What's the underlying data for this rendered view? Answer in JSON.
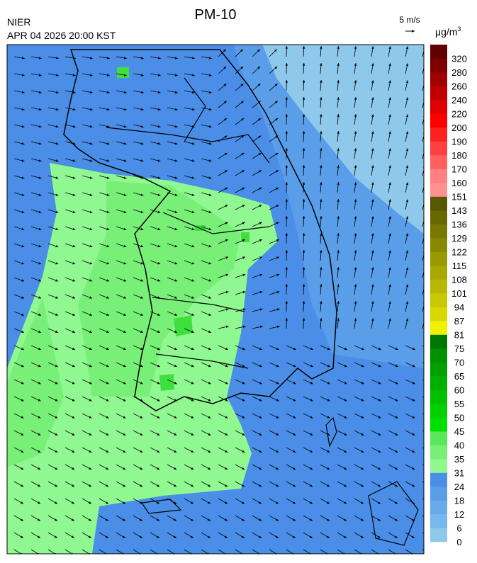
{
  "header": {
    "title": "PM-10",
    "agency": "NIER",
    "timestamp": "APR 04 2026 20:00 KST"
  },
  "wind_reference": {
    "label": "5 m/s"
  },
  "colorbar": {
    "unit": "μg/m",
    "unit_superscript": "3",
    "labels": [
      0,
      6,
      12,
      18,
      24,
      31,
      35,
      40,
      45,
      50,
      55,
      60,
      65,
      70,
      75,
      81,
      87,
      94,
      101,
      108,
      115,
      122,
      129,
      136,
      143,
      151,
      160,
      170,
      180,
      190,
      200,
      220,
      240,
      260,
      280,
      320
    ],
    "colors": [
      "#8ec8ea",
      "#78b8ec",
      "#68aaea",
      "#5a9eea",
      "#4a8ee8",
      "#90f890",
      "#78f078",
      "#5ae85a",
      "#00e000",
      "#00d000",
      "#00c000",
      "#00b000",
      "#00a000",
      "#009000",
      "#007800",
      "#f0f000",
      "#d8d800",
      "#c8c800",
      "#b8b800",
      "#a8a800",
      "#989800",
      "#888800",
      "#787800",
      "#686800",
      "#585800",
      "#ff9090",
      "#ff8080",
      "#ff6060",
      "#ff4040",
      "#ff2020",
      "#ff0000",
      "#e00000",
      "#c00000",
      "#a00000",
      "#800000",
      "#600000"
    ]
  }
}
